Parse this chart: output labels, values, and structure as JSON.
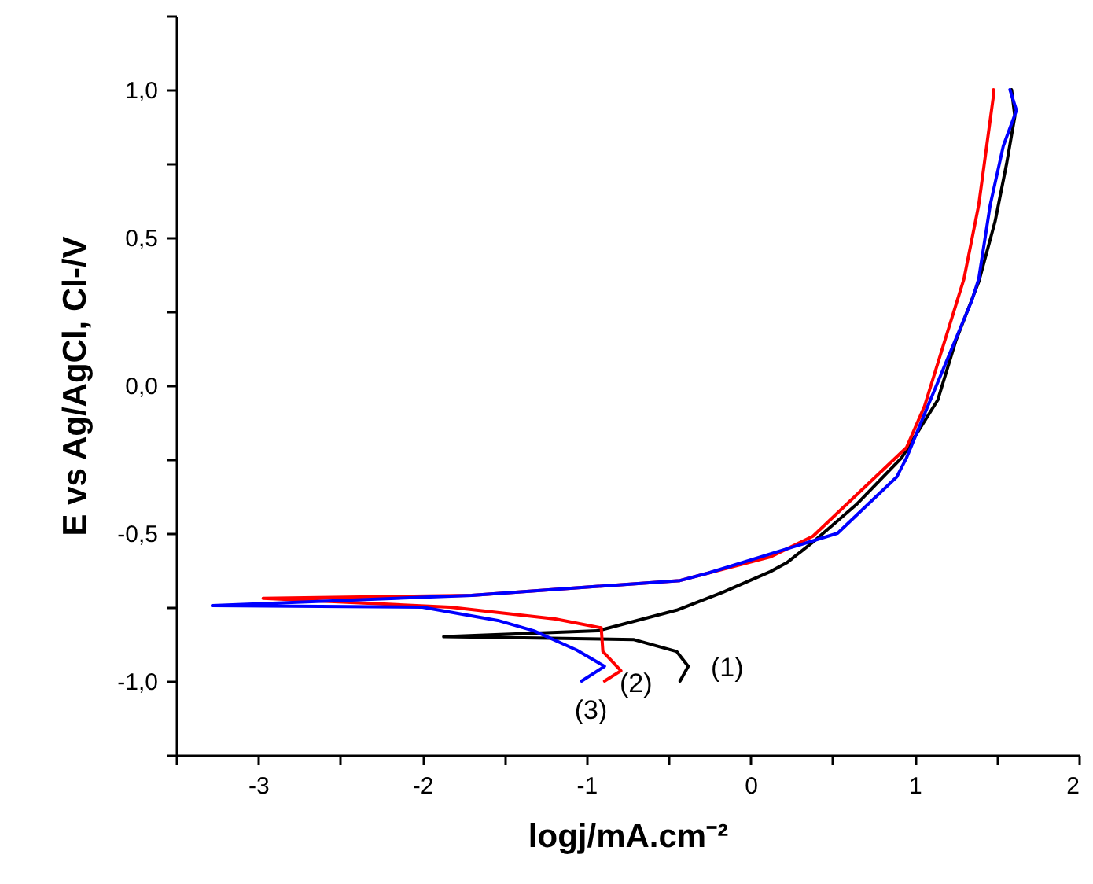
{
  "chart_data": {
    "type": "line",
    "xlabel": "logj/mA.cm⁻²",
    "ylabel": "E vs Ag/AgCl, Cl-/V",
    "xlim": [
      -3.5,
      2
    ],
    "ylim": [
      -1.25,
      1.25
    ],
    "xticks": [
      {
        "value": -3.5,
        "label": null
      },
      -3,
      {
        "value": -2.5,
        "label": null
      },
      -2,
      {
        "value": -1.5,
        "label": null
      },
      -1,
      {
        "value": -0.5,
        "label": null
      },
      0,
      {
        "value": 0.5,
        "label": null
      },
      1,
      {
        "value": 1.5,
        "label": null
      },
      2
    ],
    "yticks": [
      {
        "value": -1.25,
        "label": null
      },
      {
        "value": -1,
        "label": "-1,0"
      },
      {
        "value": -0.75,
        "label": null
      },
      {
        "value": -0.5,
        "label": "-0,5"
      },
      {
        "value": -0.25,
        "label": null
      },
      {
        "value": 0,
        "label": "0,0"
      },
      {
        "value": 0.25,
        "label": null
      },
      {
        "value": 0.5,
        "label": "0,5"
      },
      {
        "value": 0.75,
        "label": null
      },
      {
        "value": 1,
        "label": "1,0"
      },
      {
        "value": 1.25,
        "label": null
      }
    ],
    "grid": false,
    "series": [
      {
        "name": "(1)",
        "color": "#000000",
        "x": [
          -0.43,
          -0.38,
          -0.45,
          -0.71,
          -1.22,
          -1.87,
          -0.93,
          -0.45,
          -0.17,
          0.12,
          0.22,
          0.38,
          0.65,
          0.92,
          1.14,
          1.25,
          1.39,
          1.49,
          1.56,
          1.61,
          1.59
        ],
        "values": [
          -1.0,
          -0.95,
          -0.9,
          -0.86,
          -0.855,
          -0.85,
          -0.83,
          -0.76,
          -0.7,
          -0.63,
          -0.6,
          -0.53,
          -0.4,
          -0.245,
          -0.05,
          0.15,
          0.35,
          0.555,
          0.75,
          0.91,
          1.0
        ]
      },
      {
        "name": "(2)",
        "color": "#ff0000",
        "x": [
          -0.89,
          -0.79,
          -0.9,
          -0.91,
          -1.19,
          -1.83,
          -2.97,
          -1.7,
          -0.43,
          -0.26,
          0.12,
          0.38,
          0.95,
          1.06,
          1.11,
          1.3,
          1.39,
          1.48,
          1.48
        ],
        "values": [
          -1.0,
          -0.965,
          -0.9,
          -0.82,
          -0.79,
          -0.75,
          -0.72,
          -0.71,
          -0.66,
          -0.635,
          -0.58,
          -0.51,
          -0.21,
          -0.07,
          0.02,
          0.36,
          0.61,
          0.98,
          1.0
        ]
      },
      {
        "name": "(3)",
        "color": "#0000ff",
        "x": [
          -1.03,
          -0.89,
          -1.06,
          -1.32,
          -1.54,
          -2.0,
          -3.28,
          -1.7,
          -0.43,
          -0.26,
          0.53,
          0.89,
          0.95,
          1.08,
          1.35,
          1.39,
          1.46,
          1.54,
          1.62,
          1.58
        ],
        "values": [
          -1.0,
          -0.95,
          -0.895,
          -0.83,
          -0.795,
          -0.75,
          -0.745,
          -0.71,
          -0.66,
          -0.635,
          -0.5,
          -0.31,
          -0.245,
          -0.07,
          0.29,
          0.36,
          0.61,
          0.81,
          0.93,
          1.0
        ]
      }
    ]
  }
}
